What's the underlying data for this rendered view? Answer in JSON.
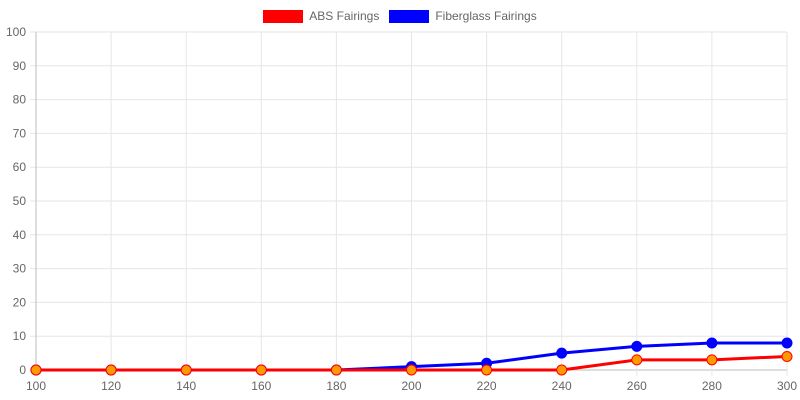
{
  "chart_data": {
    "type": "line",
    "title": "",
    "xlabel": "",
    "ylabel": "",
    "x": [
      100,
      120,
      140,
      160,
      180,
      200,
      220,
      240,
      260,
      280,
      300
    ],
    "xlim": [
      100,
      300
    ],
    "ylim": [
      0,
      100
    ],
    "y_ticks": [
      0,
      10,
      20,
      30,
      40,
      50,
      60,
      70,
      80,
      90,
      100
    ],
    "x_ticks": [
      100,
      120,
      140,
      160,
      180,
      200,
      220,
      240,
      260,
      280,
      300
    ],
    "grid": true,
    "legend_position": "top-center",
    "series": [
      {
        "name": "ABS Fairings",
        "color": "#ff0000",
        "point_color": "#ff9900",
        "values": [
          0,
          0,
          0,
          0,
          0,
          0,
          0,
          0,
          3,
          3,
          4
        ]
      },
      {
        "name": "Fiberglass Fairings",
        "color": "#0000ff",
        "point_color": "#0000ff",
        "values": [
          0,
          0,
          0,
          0,
          0,
          1,
          2,
          5,
          7,
          8,
          8
        ]
      }
    ]
  }
}
